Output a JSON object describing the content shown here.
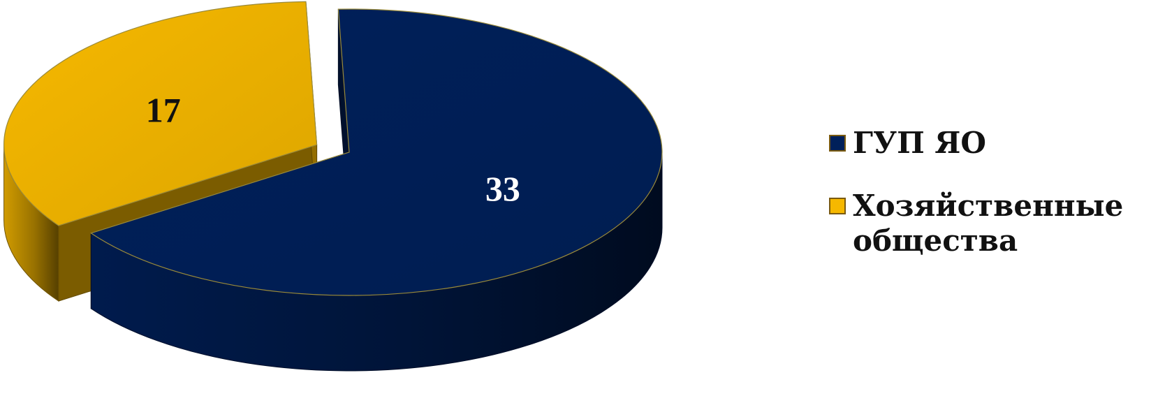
{
  "chart_data": {
    "type": "pie",
    "style": "3d",
    "title": "",
    "categories": [
      "ГУП ЯО",
      "Хозяйственные общества"
    ],
    "values": [
      33,
      17
    ],
    "data_labels": [
      "33",
      "17"
    ],
    "colors": [
      "#00205a",
      "#f6b800"
    ],
    "label_colors": [
      "#ffffff",
      "#111111"
    ],
    "exploded": [
      false,
      true
    ],
    "legend_position": "right"
  },
  "legend": {
    "items": [
      {
        "label": "ГУП ЯО",
        "color": "#00205a"
      },
      {
        "label": "Хозяйственные общества",
        "color": "#f6b800"
      }
    ]
  }
}
